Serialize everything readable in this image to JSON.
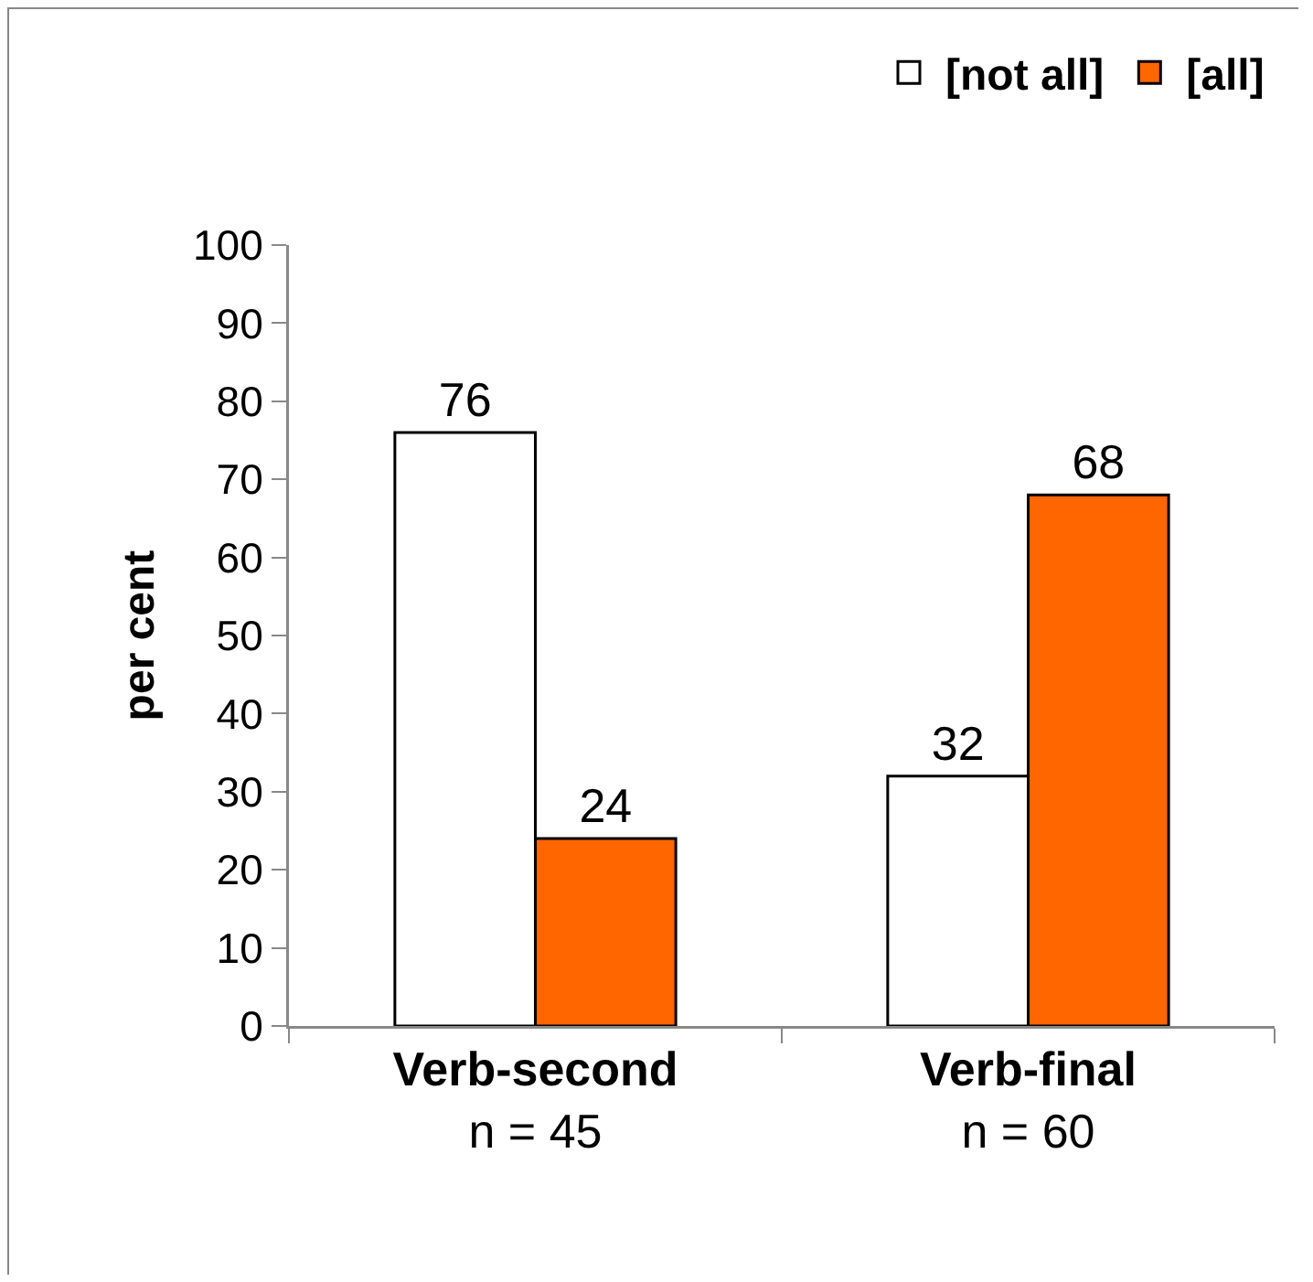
{
  "chart_data": {
    "type": "bar",
    "ylabel": "per cent",
    "categories": [
      "Verb-second\nn = 45",
      "Verb-final\nn = 60"
    ],
    "series": [
      {
        "name": "[not all]",
        "color": "#ffffff",
        "values": [
          76,
          32
        ]
      },
      {
        "name": "[all]",
        "color": "#ff6600",
        "values": [
          24,
          68
        ]
      }
    ],
    "ylim": [
      0,
      100
    ],
    "yticks": [
      0,
      10,
      20,
      30,
      40,
      50,
      60,
      70,
      80,
      90,
      100
    ],
    "grid": false,
    "legend": "top right",
    "data_labels": true
  }
}
